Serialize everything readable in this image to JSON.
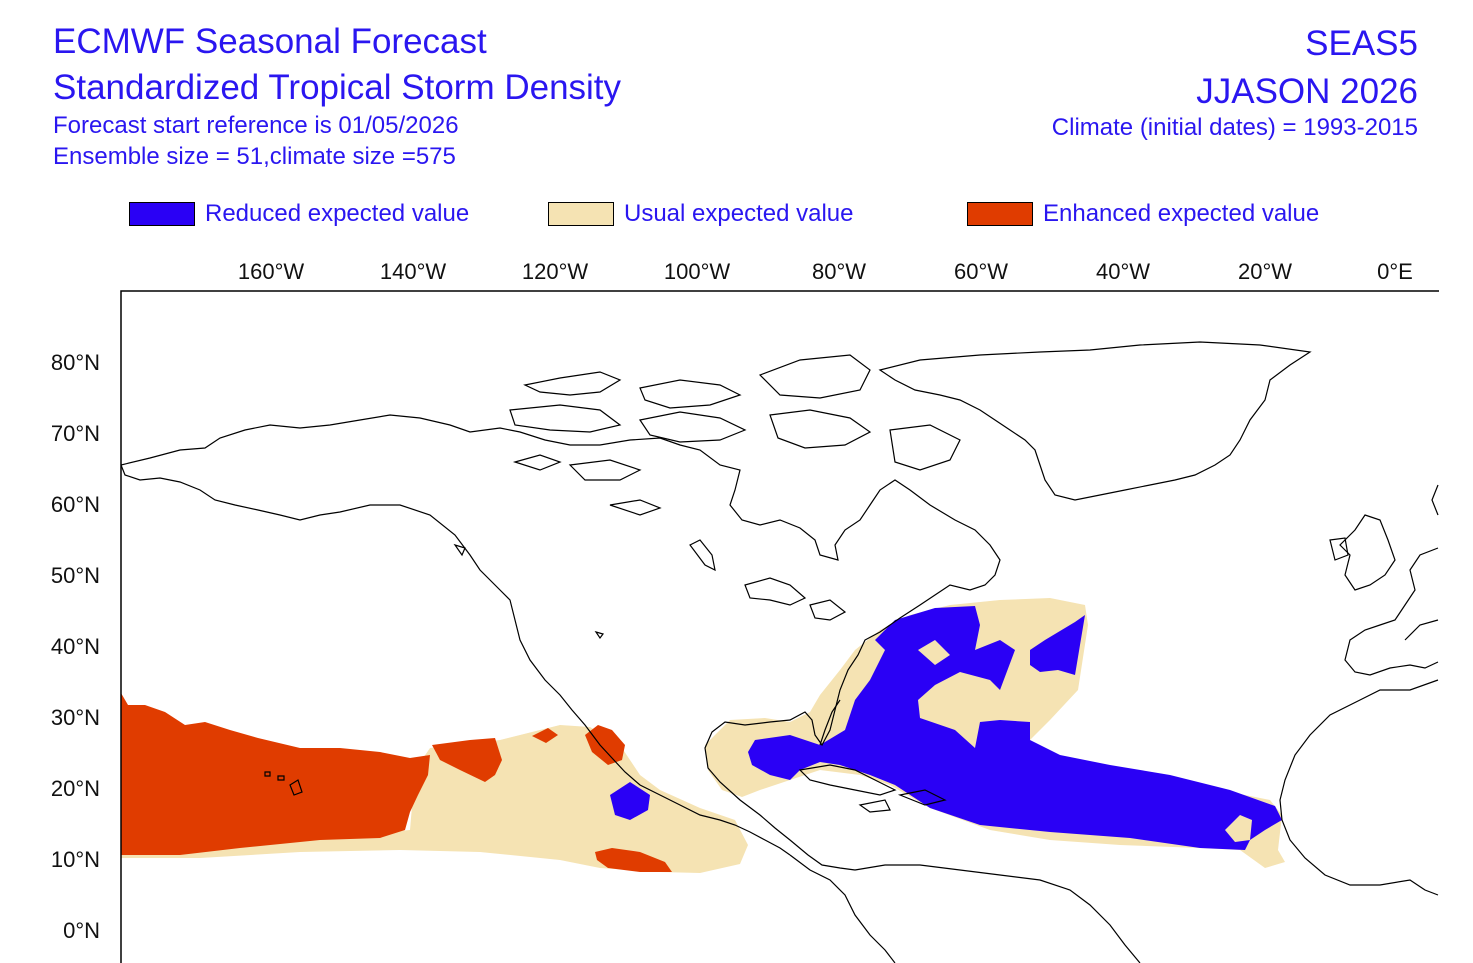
{
  "header": {
    "title_line1": "ECMWF Seasonal Forecast",
    "title_line2": "Standardized Tropical Storm Density",
    "start_reference": "Forecast start reference is 01/05/2026",
    "ensemble": "Ensemble size = 51,climate size =575",
    "system": "SEAS5",
    "period": "JJASON 2026",
    "climate": "Climate (initial dates) = 1993-2015"
  },
  "legend": [
    {
      "label": "Reduced expected value",
      "color": "#2a00f5"
    },
    {
      "label": "Usual expected value",
      "color": "#f5e3b3"
    },
    {
      "label": "Enhanced expected value",
      "color": "#e03c00"
    }
  ],
  "axes": {
    "lon_labels": [
      "160°W",
      "140°W",
      "120°W",
      "100°W",
      "80°W",
      "60°W",
      "40°W",
      "20°W",
      "0°E"
    ],
    "lat_labels": [
      "80°N",
      "70°N",
      "60°N",
      "50°N",
      "40°N",
      "30°N",
      "20°N",
      "10°N",
      "0°N"
    ]
  }
}
